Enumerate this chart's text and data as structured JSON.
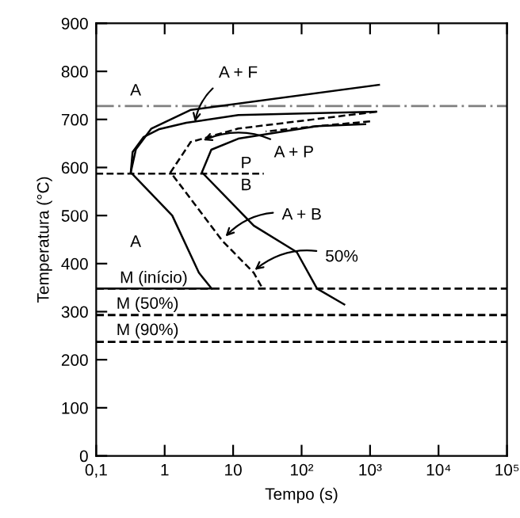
{
  "chart_data": {
    "type": "line",
    "xlabel": "Tempo (s)",
    "ylabel": "Temperatura (°C)",
    "log": "x",
    "xlim": [
      0.1,
      100000
    ],
    "ylim": [
      0,
      900
    ],
    "xticks": [
      {
        "value": 0.1,
        "label": "0,1"
      },
      1,
      10,
      {
        "value": 100,
        "label": "10²"
      },
      {
        "value": 1000,
        "label": "10³"
      },
      {
        "value": 10000,
        "label": "10⁴"
      },
      {
        "value": 100000,
        "label": "10⁵"
      }
    ],
    "yticks": [
      0,
      100,
      200,
      300,
      400,
      500,
      600,
      700,
      800,
      900
    ],
    "grid": false,
    "legend": false,
    "series": [
      {
        "color": "#000000",
        "line_style": "solid",
        "x": [
          1350,
          2.42,
          0.64,
          0.38,
          0.32,
          1.29,
          3.16,
          4.85
        ],
        "values": [
          772,
          720,
          681,
          638,
          590,
          500,
          381,
          348
        ]
      },
      {
        "color": "#000000",
        "line_style": "solid",
        "x": [
          1230,
          11.9,
          2.07,
          0.84,
          0.49,
          0.34,
          0.32
        ],
        "values": [
          716,
          709,
          693,
          680,
          663,
          632,
          590
        ]
      },
      {
        "color": "#000000",
        "line_style": "dashed",
        "x": [
          1230,
          11.9,
          2.4,
          1.22,
          7.0,
          20,
          26
        ],
        "values": [
          716,
          681,
          653,
          590,
          447,
          381,
          352
        ]
      },
      {
        "color": "#000000",
        "line_style": "dashed",
        "x": [
          1000,
          168,
          30
        ],
        "values": [
          696,
          686,
          675
        ]
      },
      {
        "color": "#000000",
        "line_style": "solid",
        "x": [
          850,
          168,
          11.9,
          4.8,
          3.5,
          20,
          85,
          168,
          420
        ],
        "values": [
          690,
          686,
          660,
          637,
          590,
          479,
          424,
          348,
          315
        ]
      },
      {
        "color": "#000000",
        "line_style": "dashed",
        "x": [
          0.1,
          28
        ],
        "values": [
          587,
          587
        ]
      },
      {
        "color": "#000000",
        "line_style": "solid",
        "x": [
          0.1,
          4.85
        ],
        "values": [
          348,
          348
        ]
      }
    ],
    "ref_lines": [
      {
        "axis": "y",
        "value": 728,
        "color": "#808080",
        "line_style": "dashdot"
      },
      {
        "axis": "y",
        "value": 348,
        "color": "#000000",
        "line_style": "dashed"
      },
      {
        "axis": "y",
        "value": 293,
        "color": "#000000",
        "line_style": "dashed"
      },
      {
        "axis": "y",
        "value": 237,
        "color": "#000000",
        "line_style": "dashed"
      }
    ],
    "annotations": [
      "A",
      "A",
      "P",
      "B",
      "M (início)",
      "M (50%)",
      "M (90%)",
      {
        "text": "A + F",
        "x": 2.7,
        "y": 686
      },
      {
        "text": "A + P",
        "x": 3.2,
        "y": 653
      },
      {
        "text": "A + B",
        "x": 7.0,
        "y": 450
      },
      {
        "text": "50%",
        "x": 18.5,
        "y": 381
      }
    ]
  }
}
